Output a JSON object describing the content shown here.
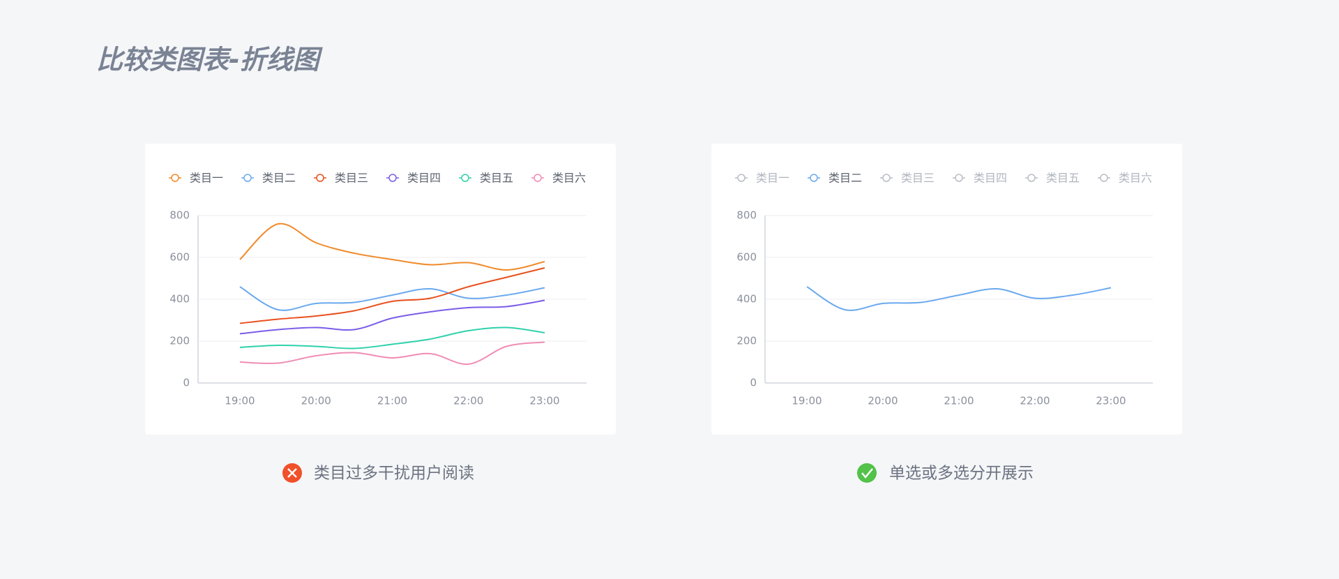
{
  "title": "比较类图表-折线图",
  "captions": [
    "类目过多干扰用户阅读",
    "单选或多选分开展示"
  ],
  "chart_data": [
    {
      "type": "line",
      "categories": [
        "19:00",
        null,
        "20:00",
        null,
        "21:00",
        null,
        "22:00",
        null,
        "23:00"
      ],
      "ylim": [
        0,
        800
      ],
      "yticks": [
        0,
        200,
        400,
        600,
        800
      ],
      "grid": true,
      "series": [
        {
          "name": "类目一",
          "color": "#f08a2a",
          "values": [
            590,
            760,
            670,
            620,
            590,
            565,
            575,
            540,
            580
          ]
        },
        {
          "name": "类目二",
          "color": "#6aa9ee",
          "values": [
            460,
            350,
            380,
            385,
            420,
            450,
            405,
            420,
            455
          ]
        },
        {
          "name": "类目三",
          "color": "#e8501e",
          "values": [
            285,
            305,
            320,
            345,
            390,
            405,
            460,
            505,
            550
          ]
        },
        {
          "name": "类目四",
          "color": "#7b5ce8",
          "values": [
            235,
            255,
            265,
            255,
            310,
            340,
            360,
            365,
            395
          ]
        },
        {
          "name": "类目五",
          "color": "#2ed1ab",
          "values": [
            170,
            180,
            175,
            165,
            185,
            210,
            250,
            265,
            240
          ]
        },
        {
          "name": "类目六",
          "color": "#f08cb4",
          "values": [
            100,
            95,
            130,
            145,
            120,
            140,
            90,
            175,
            195
          ]
        }
      ]
    },
    {
      "type": "line",
      "categories": [
        "19:00",
        null,
        "20:00",
        null,
        "21:00",
        null,
        "22:00",
        null,
        "23:00"
      ],
      "ylim": [
        0,
        800
      ],
      "yticks": [
        0,
        200,
        400,
        600,
        800
      ],
      "grid": true,
      "series": [
        {
          "name": "类目一",
          "color": "#b8bcc5"
        },
        {
          "name": "类目二",
          "color": "#6aa9ee",
          "values": [
            460,
            350,
            380,
            385,
            420,
            450,
            405,
            420,
            455
          ]
        },
        {
          "name": "类目三",
          "color": "#b8bcc5"
        },
        {
          "name": "类目四",
          "color": "#b8bcc5"
        },
        {
          "name": "类目五",
          "color": "#b8bcc5"
        },
        {
          "name": "类目六",
          "color": "#b8bcc5"
        }
      ]
    }
  ]
}
